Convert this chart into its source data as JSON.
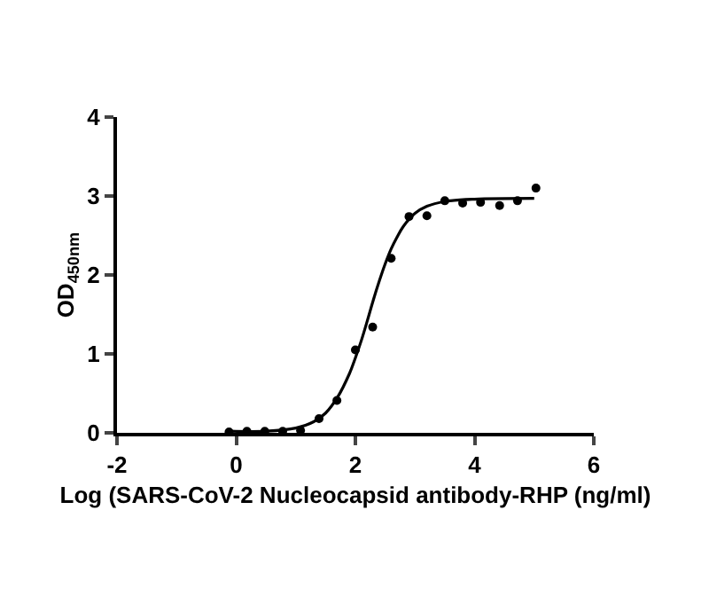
{
  "chart_data": {
    "type": "scatter",
    "xlabel": "Log (SARS-CoV-2 Nucleocapsid antibody-RHP (ng/ml)",
    "ylabel": "OD$_{450nm}$",
    "xlim": [
      -2,
      6
    ],
    "xticks": [
      -2,
      0,
      2,
      4,
      6
    ],
    "ylim": [
      0,
      4
    ],
    "yticks": [
      0,
      1,
      2,
      3,
      4
    ],
    "series": [
      {
        "color": "#000000",
        "marker": "circle",
        "x": [
          -0.12,
          0.18,
          0.48,
          0.78,
          1.08,
          1.39,
          1.69,
          2.0,
          2.29,
          2.6,
          2.9,
          3.2,
          3.5,
          3.8,
          4.1,
          4.42,
          4.72,
          5.03
        ],
        "values": [
          0.01,
          0.02,
          0.02,
          0.02,
          0.03,
          0.18,
          0.41,
          1.05,
          1.34,
          2.21,
          2.74,
          2.75,
          2.94,
          2.91,
          2.92,
          2.88,
          2.94,
          3.1
        ]
      },
      {
        "type": "line",
        "color": "#000000",
        "line_style": "solid",
        "x": [
          -0.1,
          0.5,
          1.0,
          1.3,
          1.5,
          1.7,
          1.9,
          2.0,
          2.1,
          2.2,
          2.3,
          2.4,
          2.5,
          2.6,
          2.7,
          2.8,
          3.0,
          3.2,
          3.5,
          4.0,
          5.0
        ],
        "values": [
          0.02,
          0.02,
          0.06,
          0.14,
          0.25,
          0.45,
          0.75,
          0.95,
          1.17,
          1.42,
          1.68,
          1.92,
          2.14,
          2.33,
          2.48,
          2.61,
          2.78,
          2.87,
          2.93,
          2.96,
          2.97
        ]
      }
    ]
  }
}
